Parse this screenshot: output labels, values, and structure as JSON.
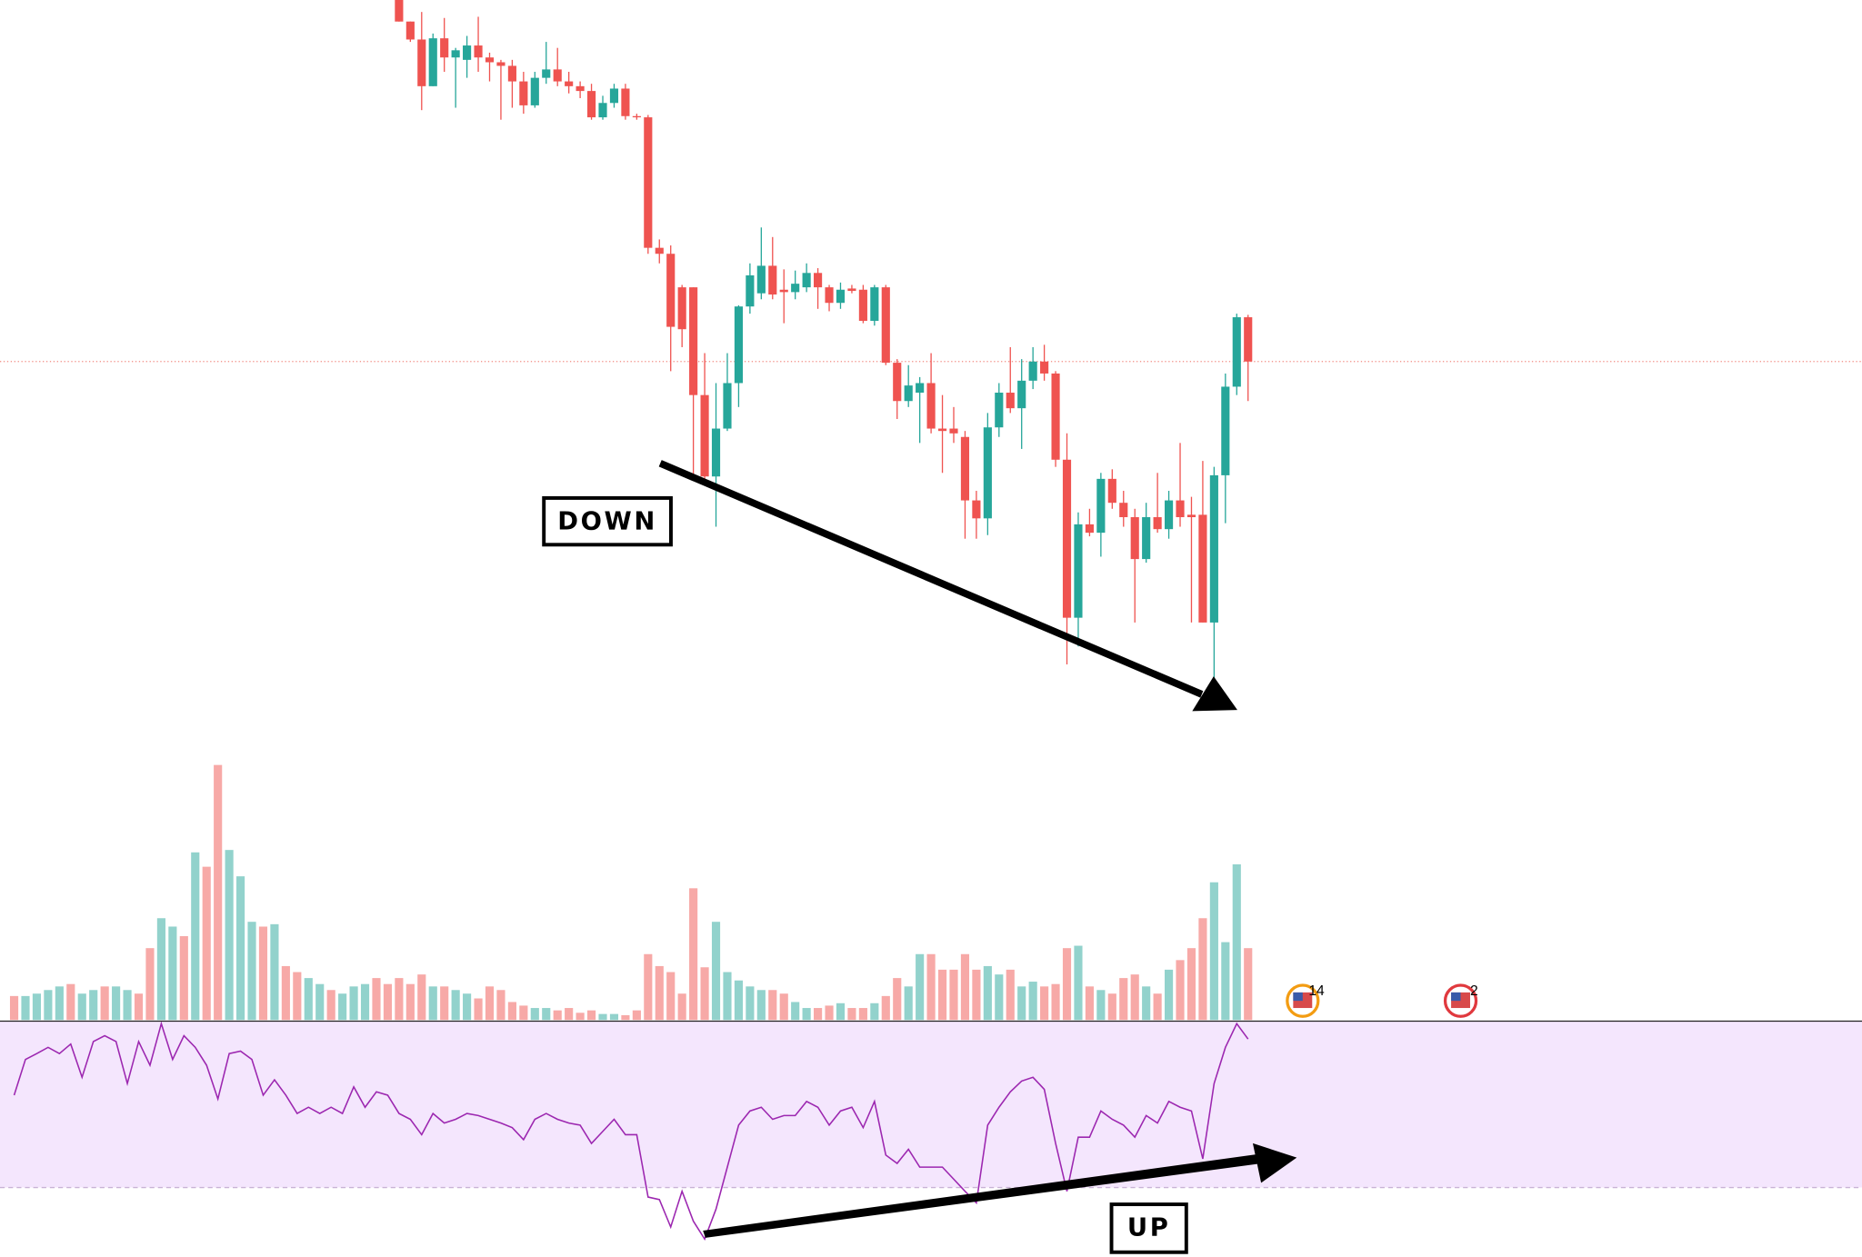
{
  "chart_data": {
    "type": "candlestick",
    "up_color": "#26a69a",
    "down_color": "#ef5350",
    "ylim": [
      0,
      600
    ],
    "open": [
      null,
      null,
      null,
      null,
      null,
      null,
      null,
      null,
      null,
      null,
      null,
      null,
      null,
      null,
      null,
      null,
      null,
      null,
      null,
      null,
      null,
      null,
      null,
      null,
      null,
      null,
      null,
      null,
      null,
      null,
      null,
      null,
      null,
      null,
      600,
      582,
      567,
      528,
      568,
      552,
      550,
      562,
      552,
      548,
      545,
      532,
      512,
      535,
      542,
      532,
      528,
      524,
      502,
      514,
      526,
      503,
      502,
      393,
      388,
      360,
      360,
      270,
      202,
      242,
      280,
      344,
      355,
      378,
      358,
      356,
      360,
      372,
      360,
      347,
      359,
      358,
      332,
      360,
      297,
      265,
      272,
      280,
      242,
      242,
      235,
      182,
      167,
      243,
      272,
      259,
      282,
      298,
      288,
      216,
      84,
      162,
      155,
      200,
      180,
      168,
      133,
      168,
      158,
      182,
      170,
      170,
      80,
      203,
      277,
      335
    ],
    "high": [
      null,
      null,
      null,
      null,
      null,
      null,
      null,
      null,
      null,
      null,
      null,
      null,
      null,
      null,
      null,
      null,
      null,
      null,
      null,
      null,
      null,
      null,
      null,
      null,
      null,
      null,
      null,
      null,
      null,
      null,
      null,
      null,
      null,
      null,
      600,
      582,
      590,
      572,
      585,
      560,
      570,
      586,
      556,
      550,
      550,
      540,
      540,
      565,
      560,
      540,
      532,
      530,
      520,
      530,
      530,
      505,
      504,
      400,
      395,
      362,
      360,
      305,
      280,
      305,
      345,
      380,
      410,
      402,
      375,
      374,
      380,
      376,
      362,
      364,
      362,
      362,
      362,
      362,
      300,
      295,
      285,
      305,
      270,
      260,
      240,
      190,
      255,
      280,
      310,
      300,
      310,
      312,
      290,
      238,
      172,
      175,
      205,
      208,
      190,
      175,
      180,
      205,
      190,
      230,
      185,
      215,
      210,
      288,
      338,
      337
    ],
    "low": [
      null,
      null,
      null,
      null,
      null,
      null,
      null,
      null,
      null,
      null,
      null,
      null,
      null,
      null,
      null,
      null,
      null,
      null,
      null,
      null,
      null,
      null,
      null,
      null,
      null,
      null,
      null,
      null,
      null,
      null,
      null,
      null,
      null,
      null,
      582,
      565,
      508,
      528,
      540,
      510,
      535,
      540,
      532,
      500,
      510,
      505,
      510,
      530,
      528,
      522,
      518,
      500,
      500,
      510,
      500,
      500,
      388,
      380,
      290,
      310,
      200,
      200,
      160,
      240,
      260,
      338,
      350,
      350,
      330,
      350,
      356,
      342,
      340,
      342,
      355,
      330,
      328,
      295,
      250,
      260,
      230,
      238,
      205,
      230,
      150,
      150,
      153,
      235,
      255,
      225,
      275,
      282,
      210,
      45,
      60,
      152,
      135,
      175,
      160,
      80,
      130,
      155,
      150,
      160,
      80,
      80,
      30,
      163,
      270,
      265
    ],
    "close": [
      null,
      null,
      null,
      null,
      null,
      null,
      null,
      null,
      null,
      null,
      null,
      null,
      null,
      null,
      null,
      null,
      null,
      null,
      null,
      null,
      null,
      null,
      null,
      null,
      null,
      null,
      null,
      null,
      null,
      null,
      null,
      null,
      null,
      null,
      582,
      567,
      528,
      568,
      552,
      558,
      562,
      552,
      548,
      545,
      532,
      512,
      535,
      542,
      532,
      528,
      524,
      502,
      514,
      526,
      503,
      502,
      393,
      388,
      327,
      325,
      270,
      202,
      242,
      280,
      344,
      370,
      378,
      354,
      356,
      363,
      372,
      360,
      347,
      358,
      357,
      332,
      360,
      297,
      265,
      278,
      280,
      242,
      240,
      238,
      182,
      167,
      243,
      272,
      259,
      282,
      298,
      288,
      216,
      84,
      162,
      155,
      200,
      180,
      168,
      133,
      168,
      158,
      182,
      168,
      168,
      80,
      203,
      277,
      335,
      298
    ],
    "price_line_color": "#f28b82",
    "volume": {
      "ylim": [
        0,
        225
      ],
      "values": [
        20,
        20,
        22,
        25,
        28,
        30,
        22,
        25,
        28,
        28,
        25,
        22,
        60,
        85,
        78,
        70,
        140,
        128,
        213,
        142,
        120,
        82,
        78,
        80,
        45,
        40,
        35,
        30,
        25,
        22,
        28,
        30,
        35,
        30,
        35,
        30,
        38,
        28,
        28,
        25,
        22,
        18,
        28,
        25,
        15,
        12,
        10,
        10,
        8,
        10,
        6,
        8,
        5,
        5,
        4,
        8,
        55,
        45,
        40,
        22,
        110,
        44,
        82,
        40,
        33,
        28,
        25,
        25,
        22,
        15,
        10,
        10,
        12,
        14,
        10,
        10,
        14,
        20,
        35,
        28,
        55,
        55,
        42,
        42,
        55,
        42,
        45,
        38,
        42,
        28,
        32,
        28,
        30,
        60,
        62,
        28,
        25,
        22,
        35,
        38,
        28,
        22,
        42,
        50,
        60,
        85,
        115,
        65,
        130,
        60
      ],
      "colors": [
        "#f7a9a7",
        "#92d2cc",
        "#92d2cc",
        "#92d2cc",
        "#92d2cc",
        "#f7a9a7",
        "#92d2cc",
        "#92d2cc",
        "#f7a9a7",
        "#92d2cc",
        "#92d2cc",
        "#f7a9a7",
        "#f7a9a7",
        "#92d2cc",
        "#92d2cc",
        "#f7a9a7",
        "#92d2cc",
        "#f7a9a7",
        "#f7a9a7",
        "#92d2cc",
        "#92d2cc",
        "#92d2cc",
        "#f7a9a7",
        "#92d2cc",
        "#f7a9a7",
        "#f7a9a7",
        "#92d2cc",
        "#92d2cc",
        "#f7a9a7",
        "#92d2cc",
        "#92d2cc",
        "#92d2cc",
        "#f7a9a7",
        "#f7a9a7",
        "#f7a9a7",
        "#f7a9a7",
        "#f7a9a7",
        "#92d2cc",
        "#f7a9a7",
        "#92d2cc",
        "#92d2cc",
        "#f7a9a7",
        "#f7a9a7",
        "#f7a9a7",
        "#f7a9a7",
        "#f7a9a7",
        "#92d2cc",
        "#92d2cc",
        "#f7a9a7",
        "#f7a9a7",
        "#f7a9a7",
        "#f7a9a7",
        "#92d2cc",
        "#92d2cc",
        "#f7a9a7",
        "#f7a9a7",
        "#f7a9a7",
        "#f7a9a7",
        "#f7a9a7",
        "#f7a9a7",
        "#f7a9a7",
        "#f7a9a7",
        "#92d2cc",
        "#92d2cc",
        "#92d2cc",
        "#92d2cc",
        "#92d2cc",
        "#f7a9a7",
        "#f7a9a7",
        "#92d2cc",
        "#92d2cc",
        "#f7a9a7",
        "#f7a9a7",
        "#92d2cc",
        "#f7a9a7",
        "#f7a9a7",
        "#92d2cc",
        "#f7a9a7",
        "#f7a9a7",
        "#92d2cc",
        "#92d2cc",
        "#f7a9a7",
        "#f7a9a7",
        "#f7a9a7",
        "#f7a9a7",
        "#f7a9a7",
        "#92d2cc",
        "#92d2cc",
        "#f7a9a7",
        "#92d2cc",
        "#92d2cc",
        "#f7a9a7",
        "#f7a9a7",
        "#f7a9a7",
        "#92d2cc",
        "#f7a9a7",
        "#92d2cc",
        "#f7a9a7",
        "#f7a9a7",
        "#f7a9a7",
        "#92d2cc",
        "#f7a9a7",
        "#92d2cc",
        "#f7a9a7",
        "#f7a9a7",
        "#f7a9a7",
        "#92d2cc",
        "#92d2cc",
        "#92d2cc",
        "#f7a9a7"
      ]
    },
    "rsi": {
      "color": "#9c27b0",
      "band_color": "#f4e6fd",
      "ylim": [
        13,
        70
      ],
      "band": [
        30,
        70
      ],
      "values": [
        52.2,
        60.8,
        62.2,
        63.7,
        62.2,
        64.5,
        56.5,
        65.1,
        66.5,
        65.1,
        55.0,
        65.1,
        59.4,
        69.4,
        60.8,
        66.5,
        63.7,
        59.4,
        51.3,
        62.2,
        62.8,
        60.8,
        52.2,
        55.9,
        52.2,
        47.8,
        49.3,
        47.8,
        49.3,
        47.8,
        54.2,
        49.3,
        53.0,
        52.2,
        47.8,
        46.4,
        42.7,
        47.8,
        45.5,
        46.4,
        47.8,
        47.3,
        46.4,
        45.5,
        44.4,
        41.5,
        46.4,
        47.8,
        46.4,
        45.5,
        45.0,
        40.6,
        43.5,
        46.4,
        42.7,
        42.7,
        27.7,
        27.1,
        20.5,
        29.1,
        21.9,
        17.6,
        24.8,
        34.9,
        45.0,
        48.4,
        49.3,
        46.4,
        47.3,
        47.3,
        50.7,
        49.3,
        45.0,
        48.4,
        49.3,
        44.4,
        50.7,
        37.8,
        35.8,
        39.2,
        34.9,
        34.9,
        34.9,
        32.0,
        29.1,
        26.3,
        45.0,
        49.3,
        53.0,
        55.6,
        56.5,
        53.6,
        40.6,
        29.1,
        42.1,
        42.1,
        48.4,
        46.4,
        45.0,
        42.1,
        47.3,
        45.5,
        50.7,
        49.3,
        48.4,
        36.9,
        55.0,
        63.7,
        69.4,
        65.7
      ]
    },
    "annotations": [
      "DOWN",
      "UP"
    ],
    "events": [
      "14",
      "2"
    ]
  }
}
